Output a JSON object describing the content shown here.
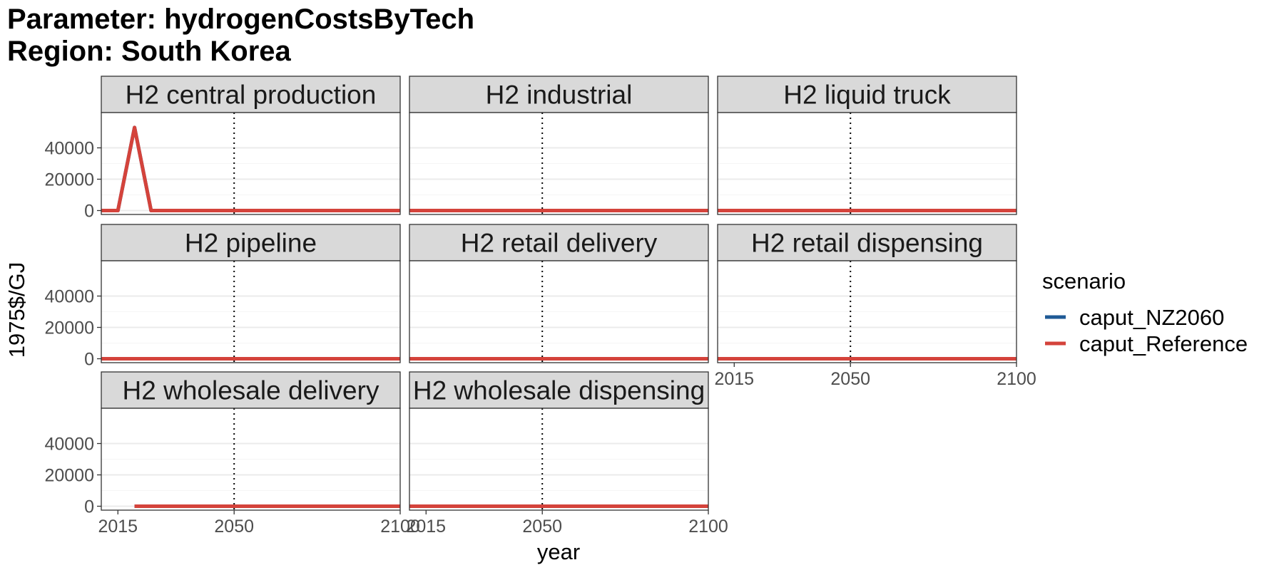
{
  "chart_data": {
    "type": "line",
    "title": "Parameter: hydrogenCostsByTech",
    "subtitle": "Region: South Korea",
    "xlabel": "year",
    "ylabel": "1975$/GJ",
    "xlim": [
      2010,
      2100
    ],
    "ylim": [
      -2500,
      62500
    ],
    "x_ticks": [
      2015,
      2050,
      2100
    ],
    "y_ticks": [
      0,
      20000,
      40000
    ],
    "y_tick_labels": [
      "0",
      "20000",
      "40000"
    ],
    "x_tick_labels": [
      "2015",
      "2050",
      "2100"
    ],
    "reference_line_x": 2050,
    "grid": true,
    "legend": {
      "title": "scenario",
      "position": "right",
      "entries": [
        {
          "name": "caput_NZ2060",
          "color": "#1f5a96"
        },
        {
          "name": "caput_Reference",
          "color": "#d4433b"
        }
      ]
    },
    "facets": [
      {
        "label": "H2 central production",
        "series": [
          {
            "name": "caput_NZ2060",
            "color": "#1f5a96",
            "x": [
              2010,
              2015,
              2020,
              2025,
              2030,
              2035,
              2040,
              2045,
              2050,
              2055,
              2060,
              2065,
              2070,
              2075,
              2080,
              2085,
              2090,
              2095,
              2100
            ],
            "y": [
              0,
              0,
              53000,
              0,
              0,
              0,
              0,
              0,
              0,
              0,
              0,
              0,
              0,
              0,
              0,
              0,
              0,
              0,
              0
            ]
          },
          {
            "name": "caput_Reference",
            "color": "#d4433b",
            "x": [
              2010,
              2015,
              2020,
              2025,
              2030,
              2035,
              2040,
              2045,
              2050,
              2055,
              2060,
              2065,
              2070,
              2075,
              2080,
              2085,
              2090,
              2095,
              2100
            ],
            "y": [
              0,
              0,
              53000,
              0,
              0,
              0,
              0,
              0,
              0,
              0,
              0,
              0,
              0,
              0,
              0,
              0,
              0,
              0,
              0
            ]
          }
        ]
      },
      {
        "label": "H2 industrial",
        "series": [
          {
            "name": "caput_NZ2060",
            "color": "#1f5a96",
            "x": [
              2010,
              2100
            ],
            "y": [
              0,
              0
            ]
          },
          {
            "name": "caput_Reference",
            "color": "#d4433b",
            "x": [
              2010,
              2100
            ],
            "y": [
              0,
              0
            ]
          }
        ]
      },
      {
        "label": "H2 liquid truck",
        "series": [
          {
            "name": "caput_NZ2060",
            "color": "#1f5a96",
            "x": [
              2010,
              2100
            ],
            "y": [
              0,
              0
            ]
          },
          {
            "name": "caput_Reference",
            "color": "#d4433b",
            "x": [
              2010,
              2100
            ],
            "y": [
              0,
              0
            ]
          }
        ]
      },
      {
        "label": "H2 pipeline",
        "series": [
          {
            "name": "caput_NZ2060",
            "color": "#1f5a96",
            "x": [
              2010,
              2100
            ],
            "y": [
              0,
              0
            ]
          },
          {
            "name": "caput_Reference",
            "color": "#d4433b",
            "x": [
              2010,
              2100
            ],
            "y": [
              0,
              0
            ]
          }
        ]
      },
      {
        "label": "H2 retail delivery",
        "series": [
          {
            "name": "caput_NZ2060",
            "color": "#1f5a96",
            "x": [
              2010,
              2100
            ],
            "y": [
              0,
              0
            ]
          },
          {
            "name": "caput_Reference",
            "color": "#d4433b",
            "x": [
              2010,
              2100
            ],
            "y": [
              0,
              0
            ]
          }
        ]
      },
      {
        "label": "H2 retail dispensing",
        "series": [
          {
            "name": "caput_NZ2060",
            "color": "#1f5a96",
            "x": [
              2010,
              2100
            ],
            "y": [
              0,
              0
            ]
          },
          {
            "name": "caput_Reference",
            "color": "#d4433b",
            "x": [
              2010,
              2100
            ],
            "y": [
              0,
              0
            ]
          }
        ]
      },
      {
        "label": "H2 wholesale delivery",
        "series": [
          {
            "name": "caput_NZ2060",
            "color": "#1f5a96",
            "x": [
              2020,
              2100
            ],
            "y": [
              0,
              0
            ]
          },
          {
            "name": "caput_Reference",
            "color": "#d4433b",
            "x": [
              2020,
              2100
            ],
            "y": [
              0,
              0
            ]
          }
        ]
      },
      {
        "label": "H2 wholesale dispensing",
        "series": [
          {
            "name": "caput_NZ2060",
            "color": "#1f5a96",
            "x": [
              2010,
              2100
            ],
            "y": [
              0,
              0
            ]
          },
          {
            "name": "caput_Reference",
            "color": "#d4433b",
            "x": [
              2010,
              2100
            ],
            "y": [
              0,
              0
            ]
          }
        ]
      }
    ]
  }
}
